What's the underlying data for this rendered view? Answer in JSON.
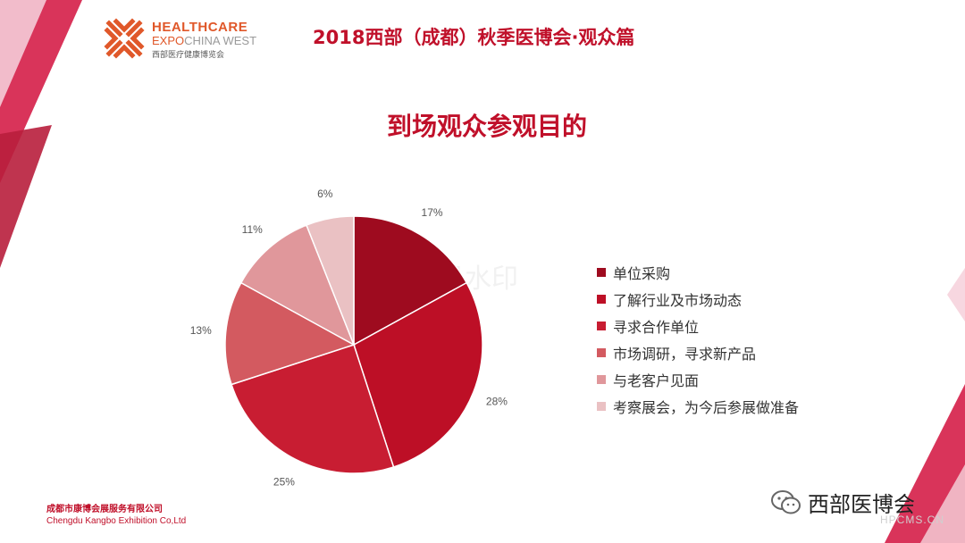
{
  "logo": {
    "line1": "HEALTHCARE",
    "line2a": "EXPO",
    "line2b": "CHINA WEST",
    "line3": "西部医疗健康博览会"
  },
  "header": {
    "title": "2018西部（成都）秋季医博会·观众篇"
  },
  "watermark": "会员水印",
  "chart_data": {
    "type": "pie",
    "title": "到场观众参观目的",
    "categories": [
      "单位采购",
      "了解行业及市场动态",
      "寻求合作单位",
      "市场调研，寻求新产品",
      "与老客户见面",
      "考察展会，为今后参展做准备"
    ],
    "values": [
      17,
      28,
      25,
      13,
      11,
      6
    ],
    "labels": [
      "17%",
      "28%",
      "25%",
      "13%",
      "11%",
      "6%"
    ],
    "colors": [
      "#9e0b1f",
      "#bd0f26",
      "#c81d32",
      "#d35a60",
      "#e0979b",
      "#eac1c3"
    ],
    "legend_position": "right"
  },
  "footer": {
    "company_cn": "成都市康博会展服务有限公司",
    "company_en": "Chengdu Kangbo Exhibition Co,Ltd",
    "wechat_name": "西部医博会",
    "site_mark": "HPCMS.CN"
  }
}
